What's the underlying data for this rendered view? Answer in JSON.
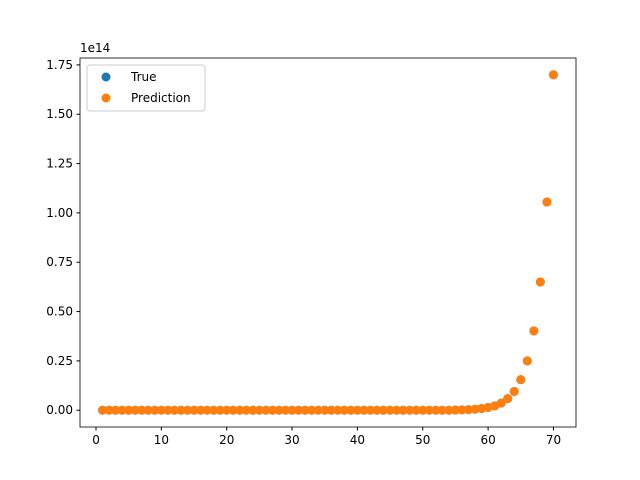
{
  "chart_data": {
    "type": "scatter",
    "y_offset_label": "1e14",
    "x": [
      1,
      2,
      3,
      4,
      5,
      6,
      7,
      8,
      9,
      10,
      11,
      12,
      13,
      14,
      15,
      16,
      17,
      18,
      19,
      20,
      21,
      22,
      23,
      24,
      25,
      26,
      27,
      28,
      29,
      30,
      31,
      32,
      33,
      34,
      35,
      36,
      37,
      38,
      39,
      40,
      41,
      42,
      43,
      44,
      45,
      46,
      47,
      48,
      49,
      50,
      51,
      52,
      53,
      54,
      55,
      56,
      57,
      58,
      59,
      60,
      61,
      62,
      63,
      64,
      65,
      66,
      67,
      68,
      69,
      70
    ],
    "series": [
      {
        "name": "True",
        "color": "#1f77b4",
        "values": [
          0,
          0,
          0,
          0,
          0,
          0,
          0,
          0,
          0,
          0,
          0,
          0,
          0,
          0,
          0,
          0,
          0,
          0,
          0,
          0,
          0,
          0,
          0,
          0,
          0,
          0,
          0,
          0,
          0,
          0,
          0,
          0,
          0,
          0,
          0,
          0,
          0,
          0,
          0,
          0,
          0,
          0,
          0,
          0,
          0,
          0,
          0,
          0,
          0,
          0,
          0,
          0,
          0,
          0,
          0.001,
          0.002,
          0.003,
          0.005,
          0.0085,
          0.014,
          0.022,
          0.036,
          0.059,
          0.095,
          0.155,
          0.25,
          0.402,
          0.65,
          1.055,
          1.7
        ]
      },
      {
        "name": "Prediction",
        "color": "#ff7f0e",
        "values": [
          0,
          0,
          0,
          0,
          0,
          0,
          0,
          0,
          0,
          0,
          0,
          0,
          0,
          0,
          0,
          0,
          0,
          0,
          0,
          0,
          0,
          0,
          0,
          0,
          0,
          0,
          0,
          0,
          0,
          0,
          0,
          0,
          0,
          0,
          0,
          0,
          0,
          0,
          0,
          0,
          0,
          0,
          0,
          0,
          0,
          0,
          0,
          0,
          0,
          0,
          0,
          0,
          0,
          0,
          0.001,
          0.002,
          0.003,
          0.005,
          0.0085,
          0.014,
          0.022,
          0.036,
          0.059,
          0.095,
          0.155,
          0.25,
          0.402,
          0.65,
          1.055,
          1.7
        ]
      }
    ],
    "xlim": [
      -2.45,
      73.45
    ],
    "ylim": [
      -0.085,
      1.785
    ],
    "xticks": [
      0,
      10,
      20,
      30,
      40,
      50,
      60,
      70
    ],
    "yticks": [
      {
        "value": 0,
        "label": "0.00"
      },
      {
        "value": 0.25,
        "label": "0.25"
      },
      {
        "value": 0.5,
        "label": "0.50"
      },
      {
        "value": 0.75,
        "label": "0.75"
      },
      {
        "value": 1,
        "label": "1.00"
      },
      {
        "value": 1.25,
        "label": "1.25"
      },
      {
        "value": 1.5,
        "label": "1.50"
      },
      {
        "value": 1.75,
        "label": "1.75"
      }
    ],
    "legend": "upper left",
    "grid": false
  }
}
